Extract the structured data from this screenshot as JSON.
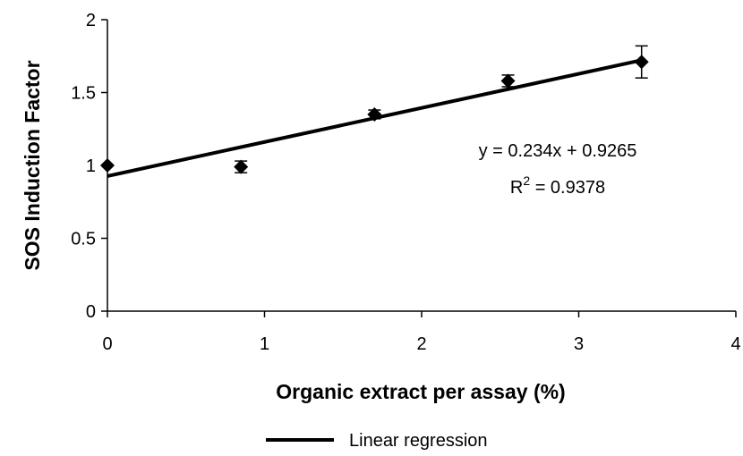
{
  "chart_data": {
    "type": "scatter",
    "title": "",
    "xlabel": "Organic extract per assay (%)",
    "ylabel": "SOS Induction Factor",
    "xlim": [
      0,
      4
    ],
    "ylim": [
      0,
      2
    ],
    "x_ticks": [
      "0",
      "1",
      "2",
      "3",
      "4"
    ],
    "y_ticks": [
      "0",
      "0.5",
      "1",
      "1.5",
      "2"
    ],
    "grid": false,
    "series": [
      {
        "marker": "diamond",
        "color": "#000000",
        "x": [
          0,
          0.85,
          1.7,
          2.55,
          3.4
        ],
        "y": [
          1.0,
          0.99,
          1.35,
          1.58,
          1.71
        ],
        "error": [
          0.0,
          0.04,
          0.03,
          0.04,
          0.11
        ]
      }
    ],
    "regression": {
      "name": "Linear regression",
      "slope": 0.234,
      "intercept": 0.9265,
      "x_range": [
        0,
        3.4
      ],
      "equation": "y = 0.234x + 0.9265",
      "r2_prefix": "R",
      "r2_sup": "2",
      "r2_value": " = 0.9378"
    },
    "legend": {
      "position": "bottom-center",
      "entries": [
        "Linear regression"
      ]
    }
  }
}
